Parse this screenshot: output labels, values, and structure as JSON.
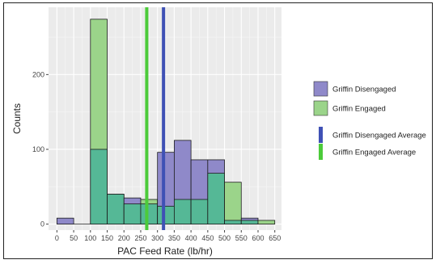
{
  "chart_data": {
    "type": "histogram",
    "xlabel": "PAC Feed Rate (lb/hr)",
    "ylabel": "Counts",
    "xlim": [
      -25,
      670
    ],
    "ylim": [
      -8,
      290
    ],
    "x_ticks": [
      "0",
      "50",
      "100",
      "150",
      "200",
      "250",
      "300",
      "350",
      "400",
      "450",
      "500",
      "550",
      "600",
      "650"
    ],
    "y_ticks": [
      "0",
      "100",
      "200"
    ],
    "grid": true,
    "legend_position": "right",
    "bins": [
      [
        0,
        50
      ],
      [
        50,
        100
      ],
      [
        100,
        150
      ],
      [
        150,
        200
      ],
      [
        200,
        250
      ],
      [
        250,
        300
      ],
      [
        300,
        350
      ],
      [
        350,
        400
      ],
      [
        400,
        450
      ],
      [
        450,
        500
      ],
      [
        500,
        550
      ],
      [
        550,
        600
      ],
      [
        600,
        650
      ]
    ],
    "series": [
      {
        "name": "Griffin Disengaged",
        "color": "#8f89c9",
        "counts": [
          8,
          0,
          100,
          40,
          35,
          27,
          96,
          112,
          86,
          86,
          5,
          8,
          0
        ]
      },
      {
        "name": "Griffin Engaged",
        "color": "#9bd48a",
        "counts": [
          0,
          0,
          274,
          40,
          27,
          33,
          24,
          33,
          33,
          68,
          56,
          5,
          5
        ]
      }
    ],
    "overlap_color": "#55b896",
    "averages": [
      {
        "name": "Griffin Disengaged Average",
        "value": 318,
        "color": "#3f51b5"
      },
      {
        "name": "Griffin Engaged Average",
        "value": 268,
        "color": "#4ccb3a"
      }
    ]
  }
}
